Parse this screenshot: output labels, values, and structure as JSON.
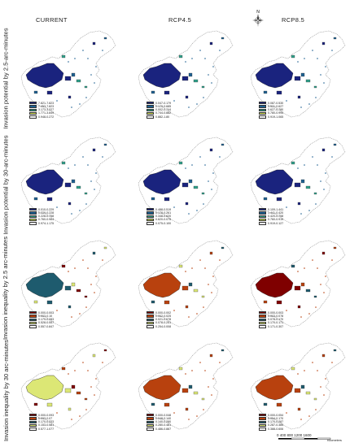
{
  "columns": [
    "CURRENT",
    "RCP4.5",
    "RCP8.5"
  ],
  "rows": [
    "Invasion potential by 2.5-arc-minutes",
    "Invasion potential by 30-arc-minutes",
    "Invasion inequality by 2.5 arc-minutes",
    "Invasion inequality by 30 arc-minutes"
  ],
  "compass_label": "N",
  "scale": {
    "labels": "0   400   800 1200  1600",
    "unit": "Kilometers"
  },
  "palettes": {
    "blue": [
      "#1a237e",
      "#1e6091",
      "#2fa08a",
      "#d4e157",
      "#f5f5f5"
    ],
    "inequality": [
      "#7f0000",
      "#b8410e",
      "#1e5b6e",
      "#dce775",
      "#f5f5f5"
    ]
  },
  "panels": [
    {
      "row": 0,
      "col": 0,
      "fill_class": 0,
      "legend": [
        "7.821-7.823",
        "7.453-7.823",
        "3.173-3.227",
        "1.771-3.849",
        "0.948-0.272"
      ]
    },
    {
      "row": 0,
      "col": 1,
      "fill_class": 0,
      "legend": [
        "0.047-0.179",
        "0.179-0.685",
        "0.002-0.744",
        "0.744-0.882",
        "0.882-1.80"
      ]
    },
    {
      "row": 0,
      "col": 2,
      "fill_class": 0,
      "legend": [
        "0.087-0.530",
        "0.531-0.627",
        "0.627-0.780",
        "0.780-0.995",
        "0.919-1.065"
      ]
    },
    {
      "row": 1,
      "col": 0,
      "fill_class": 0,
      "legend": [
        "0.010-0.229",
        "0.229-0.228",
        "0.228-0.758",
        "0.760-0.964",
        "0.974-1.175"
      ]
    },
    {
      "row": 1,
      "col": 1,
      "fill_class": 0,
      "legend": [
        "0.488-0.519",
        "0.178-0.261",
        "0.348-0.620",
        "0.620-0.075",
        "0.075-0.100"
      ]
    },
    {
      "row": 1,
      "col": 2,
      "fill_class": 0,
      "legend": [
        "0.109-1.441",
        "1.441-0.420",
        "0.420-0.758",
        "0.760-0.919",
        "0.919-0.127"
      ]
    },
    {
      "row": 2,
      "col": 0,
      "fill_class": 2,
      "legend": [
        "0.000-0.003",
        "0.003-0.10",
        "0.179-0.283",
        "0.528-0.557",
        "0.557-0.847"
      ]
    },
    {
      "row": 2,
      "col": 1,
      "fill_class": 1,
      "legend": [
        "0.000-0.002",
        "0.002-0.025",
        "0.021-0.078",
        "0.078-0.251",
        "0.254-0.008"
      ]
    },
    {
      "row": 2,
      "col": 2,
      "fill_class": 0,
      "legend": [
        "0.000-0.003",
        "0.003-0.078",
        "0.078-0.170",
        "0.170-0.171",
        "0.171-0.307"
      ]
    },
    {
      "row": 3,
      "col": 0,
      "fill_class": 3,
      "legend": [
        "0.000-0.093",
        "0.093-0.07",
        "0.170-0.333",
        "0.153-0.581",
        "0.577-1.077"
      ]
    },
    {
      "row": 3,
      "col": 1,
      "fill_class": 1,
      "legend": [
        "0.000-0.048",
        "0.048-0.140",
        "0.140-0.280",
        "0.280-0.481",
        "0.486-0.887"
      ]
    },
    {
      "row": 3,
      "col": 2,
      "fill_class": 1,
      "legend": [
        "0.000-0.054",
        "0.054-0.170",
        "0.170-0.287",
        "0.287-0.385",
        "0.388-0.606"
      ]
    }
  ]
}
